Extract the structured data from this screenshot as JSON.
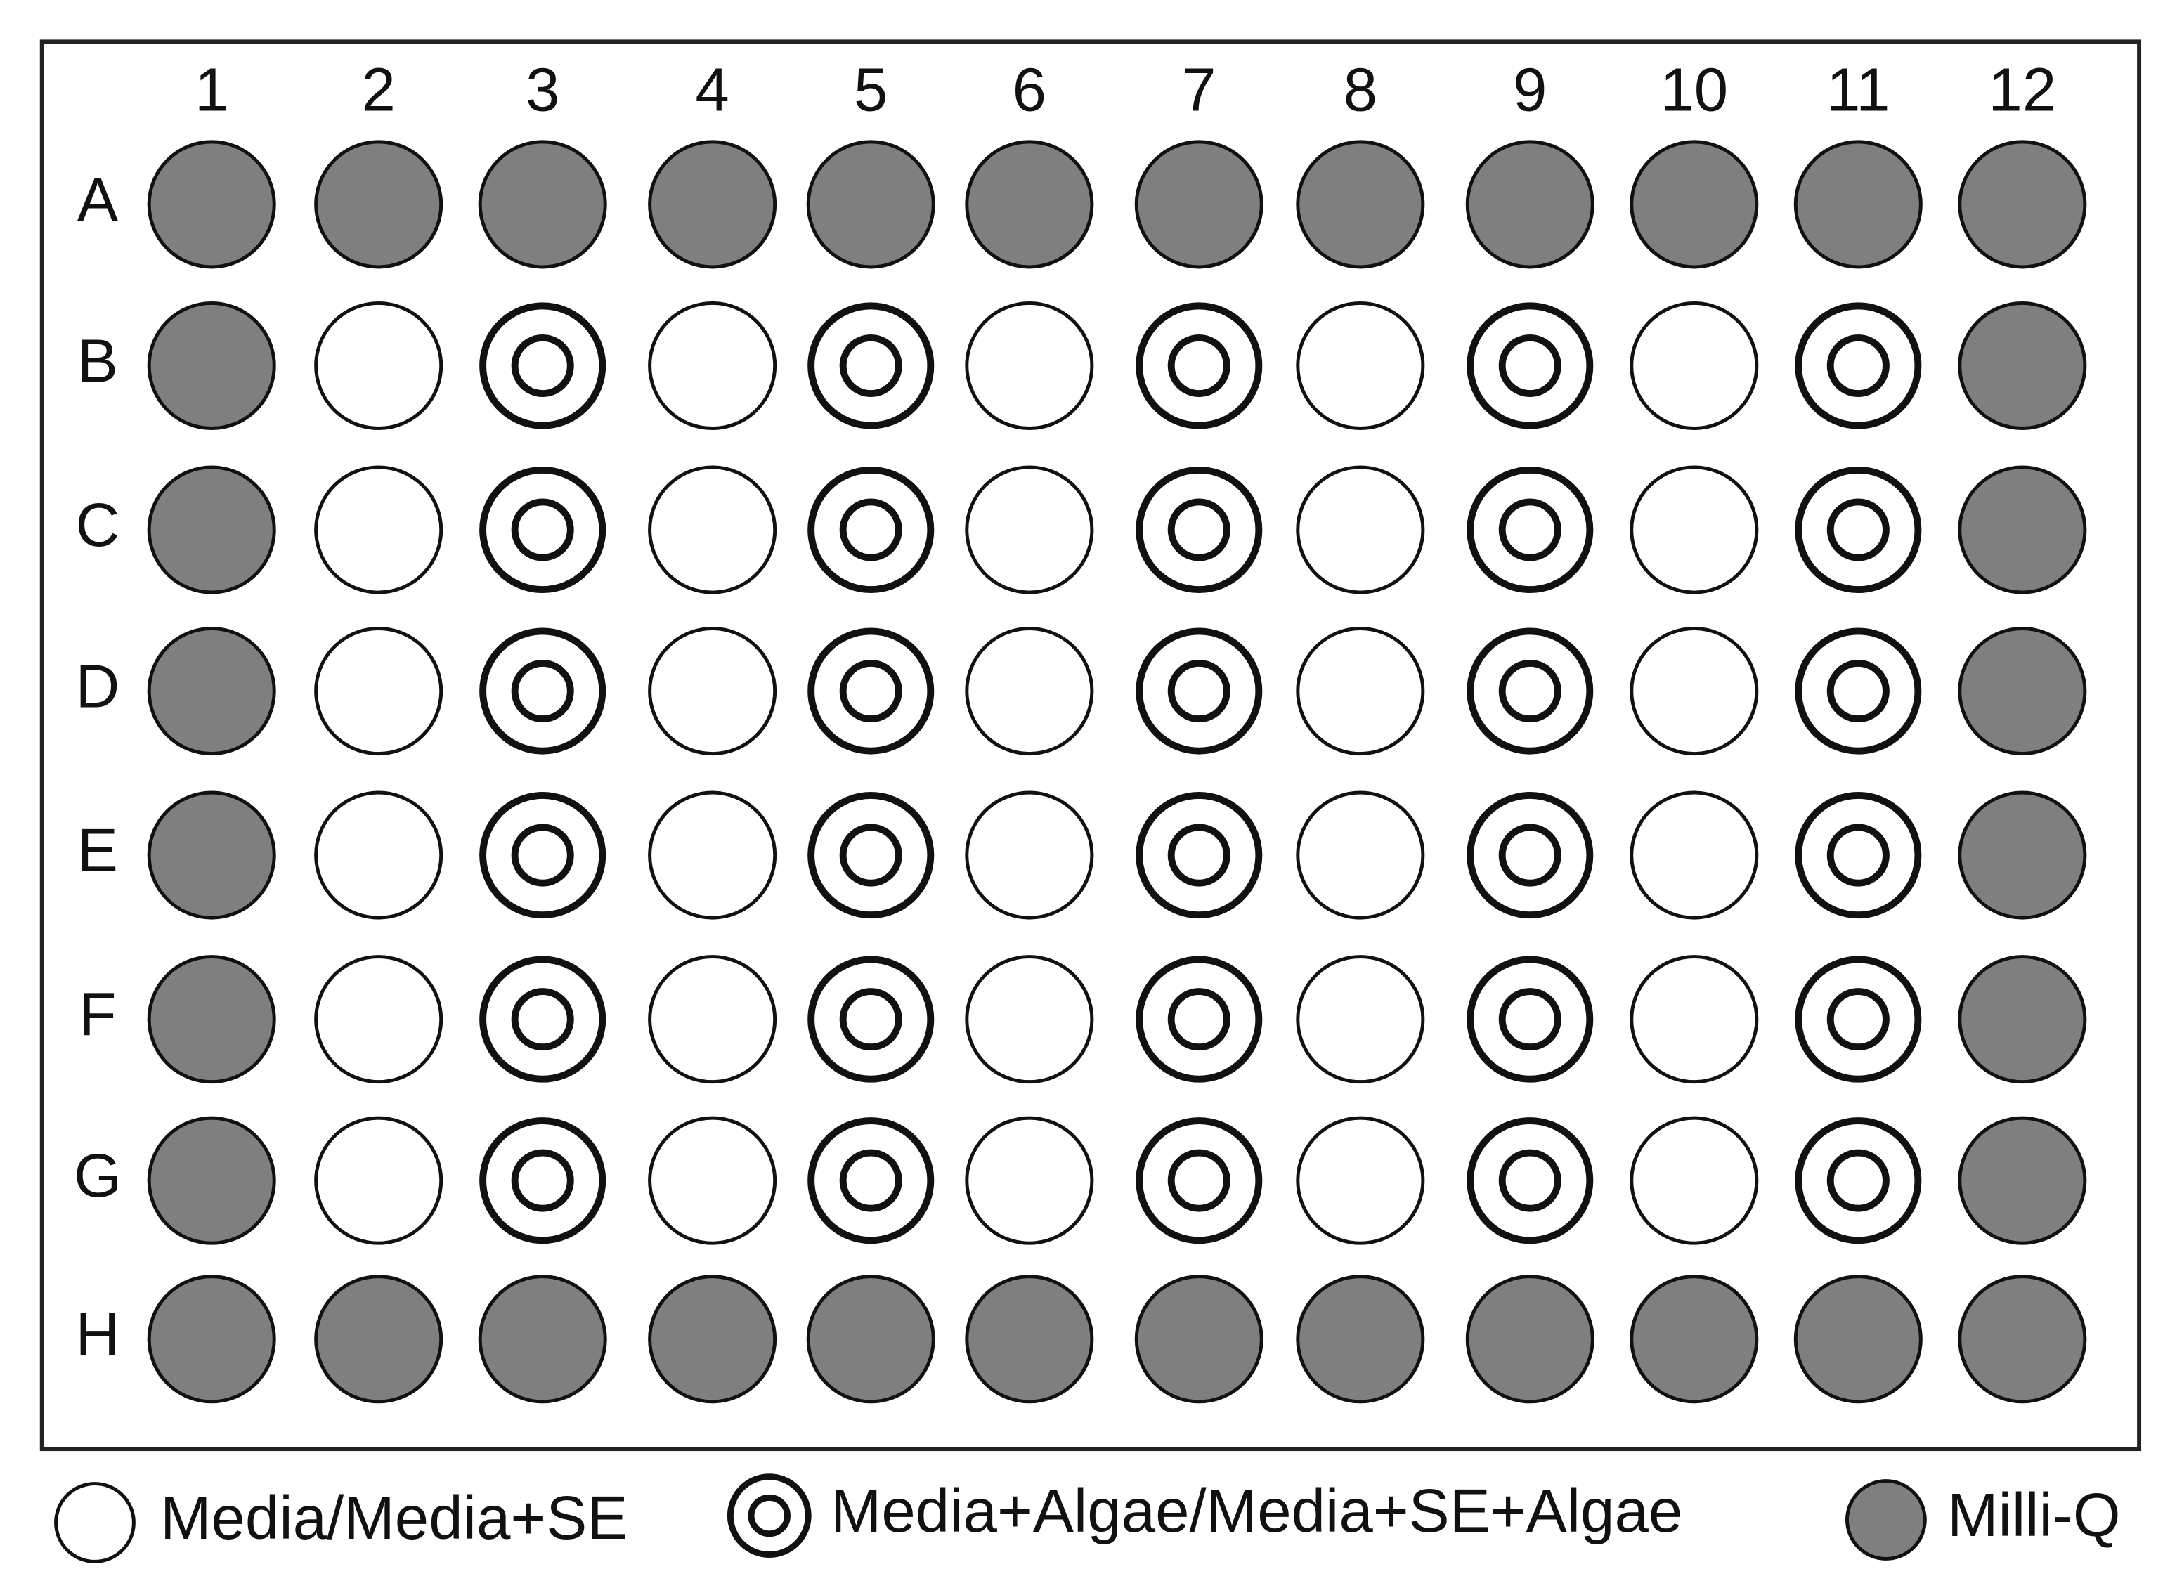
{
  "plate": {
    "columns": [
      "1",
      "2",
      "3",
      "4",
      "5",
      "6",
      "7",
      "8",
      "9",
      "10",
      "11",
      "12"
    ],
    "rows": [
      "A",
      "B",
      "C",
      "D",
      "E",
      "F",
      "G",
      "H"
    ]
  },
  "legend": [
    "Media/Media+SE",
    "Media+Algae/Media+SE+Algae",
    "Milli-Q"
  ]
}
